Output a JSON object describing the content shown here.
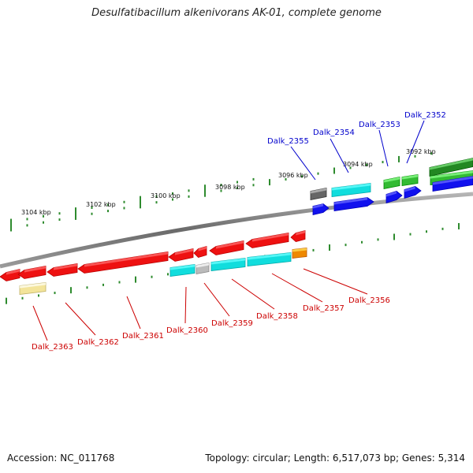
{
  "title": "Desulfatibacillum alkenivorans AK-01, complete genome",
  "footer": {
    "accession": "Accession: NC_011768",
    "topology": "Topology: circular; Length: 6,517,073 bp; Genes: 5,314"
  },
  "scale_labels": [
    "3104 kbp",
    "3102 kbp",
    "3100 kbp",
    "3098 kbp",
    "3096 kbp",
    "3094 kbp",
    "3092 kbp"
  ],
  "gene_labels": {
    "top": [
      "Dalk_2355",
      "Dalk_2354",
      "Dalk_2353",
      "Dalk_2352"
    ],
    "bottom": [
      "Dalk_2363",
      "Dalk_2362",
      "Dalk_2361",
      "Dalk_2360",
      "Dalk_2359",
      "Dalk_2358",
      "Dalk_2357",
      "Dalk_2356"
    ]
  },
  "colors": {
    "forward_label": "#0000cc",
    "reverse_label": "#cc0000",
    "red": "#ee1111",
    "cyan": "#11dddd",
    "blue": "#1111ee",
    "green": "#33bb33",
    "dark_green": "#228822",
    "gray": "#666666",
    "light_gray": "#bbbbbb",
    "orange": "#ee8800",
    "pale_yellow": "#f3e49a",
    "tick_green": "#2e8b2e",
    "backbone": "#808080"
  }
}
